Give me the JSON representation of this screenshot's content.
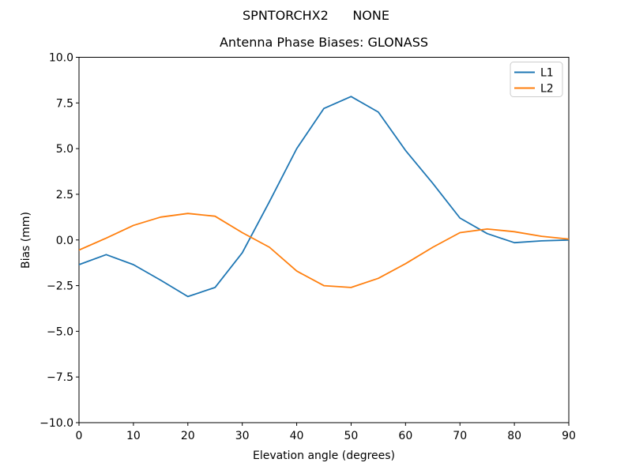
{
  "figure": {
    "suptitle": "SPNTORCHX2      NONE",
    "background": "#ffffff"
  },
  "chart_data": {
    "type": "line",
    "title": "Antenna Phase Biases: GLONASS",
    "xlabel": "Elevation angle (degrees)",
    "ylabel": "Bias (mm)",
    "xlim": [
      0,
      90
    ],
    "ylim": [
      -10,
      10
    ],
    "xticks": [
      0,
      10,
      20,
      30,
      40,
      50,
      60,
      70,
      80,
      90
    ],
    "yticks": [
      -10,
      -7.5,
      -5,
      -2.5,
      0,
      2.5,
      5,
      7.5,
      10
    ],
    "ytick_labels": [
      "−10.0",
      "−7.5",
      "−5.0",
      "−2.5",
      "0.0",
      "2.5",
      "5.0",
      "7.5",
      "10.0"
    ],
    "grid": false,
    "legend": {
      "position": "upper right"
    },
    "x": [
      0,
      5,
      10,
      15,
      20,
      25,
      30,
      35,
      40,
      45,
      50,
      55,
      60,
      65,
      70,
      75,
      80,
      85,
      90
    ],
    "series": [
      {
        "name": "L1",
        "color": "#1f77b4",
        "values": [
          -1.35,
          -0.8,
          -1.35,
          -2.2,
          -3.1,
          -2.6,
          -0.7,
          2.1,
          5.0,
          7.2,
          7.85,
          7.0,
          4.9,
          3.1,
          1.2,
          0.35,
          -0.15,
          -0.05,
          0.0
        ]
      },
      {
        "name": "L2",
        "color": "#ff7f0e",
        "values": [
          -0.55,
          0.1,
          0.8,
          1.25,
          1.45,
          1.3,
          0.4,
          -0.4,
          -1.7,
          -2.5,
          -2.6,
          -2.1,
          -1.3,
          -0.4,
          0.4,
          0.6,
          0.45,
          0.2,
          0.05
        ]
      }
    ],
    "axis_color": "#000000",
    "legend_edge_color": "#cccccc"
  }
}
